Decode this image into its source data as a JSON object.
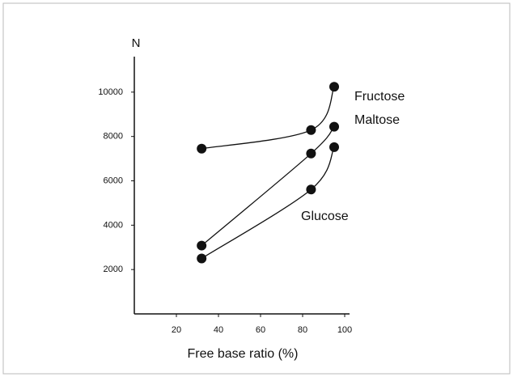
{
  "chart_data": {
    "type": "line",
    "y_label": "N",
    "x_label": "Free base ratio (%)",
    "x": [
      32,
      84,
      95
    ],
    "series": [
      {
        "name": "Fructose",
        "color": "#111111",
        "values": [
          7450,
          8290,
          10240
        ]
      },
      {
        "name": "Maltose",
        "color": "#111111",
        "values": [
          3080,
          7230,
          8440
        ]
      },
      {
        "name": "Glucose",
        "color": "#111111",
        "values": [
          2500,
          5610,
          7520
        ]
      }
    ],
    "xlim": [
      0,
      100
    ],
    "xticks": [
      20,
      40,
      60,
      80,
      100
    ],
    "ylim": [
      0,
      11600
    ],
    "yticks": [
      2000,
      4000,
      6000,
      8000,
      10000
    ],
    "grid": false
  }
}
